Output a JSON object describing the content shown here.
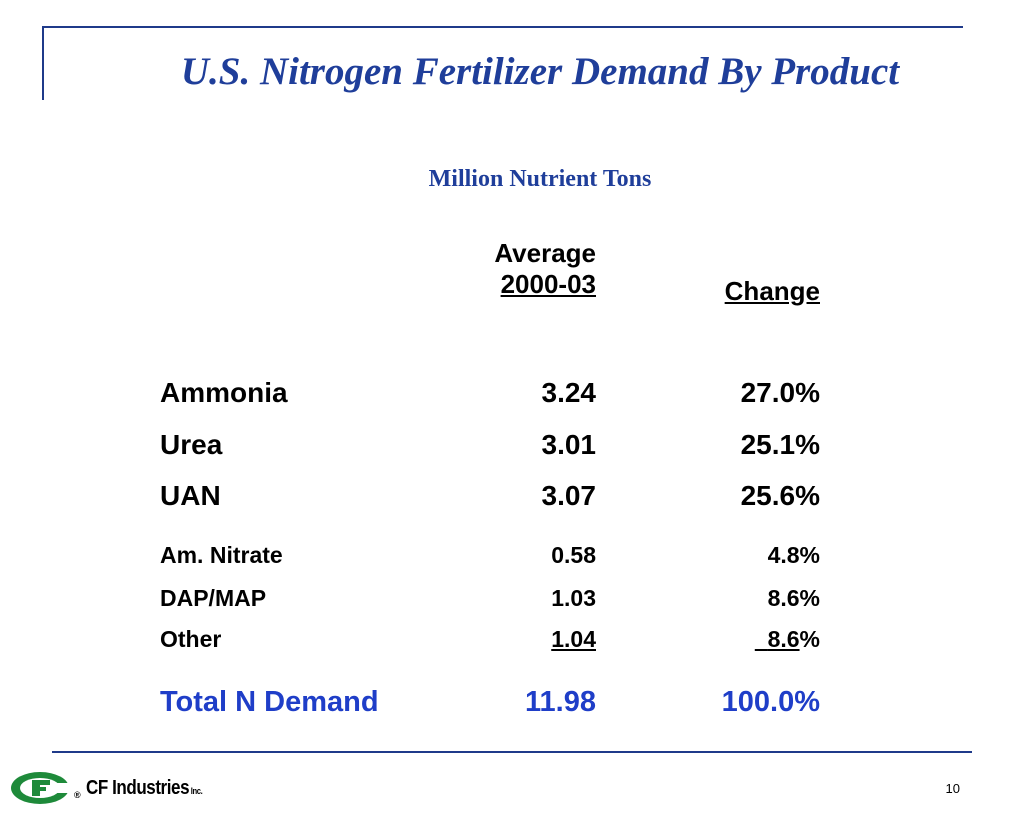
{
  "slide": {
    "title": "U.S. Nitrogen Fertilizer Demand By Product",
    "subtitle": "Million Nutrient Tons",
    "page_number": "10"
  },
  "table": {
    "col_avg_line1": "Average",
    "col_avg_line2": "2000-03",
    "col_change": "Change",
    "rows": [
      {
        "label": "Ammonia",
        "avg": "3.24",
        "change": "27.0%"
      },
      {
        "label": "Urea",
        "avg": "3.01",
        "change": "25.1%"
      },
      {
        "label": "UAN",
        "avg": "3.07",
        "change": "25.6%"
      },
      {
        "label": "Am. Nitrate",
        "avg": "0.58",
        "change": "4.8%"
      },
      {
        "label": "DAP/MAP",
        "avg": "1.03",
        "change": "8.6%"
      },
      {
        "label": "Other",
        "avg": "1.04",
        "change_pre": "  ",
        "change_num": "8.6",
        "change_pct": "%"
      }
    ],
    "total": {
      "label": "Total N Demand",
      "avg": "11.98",
      "change": "100.0%"
    }
  },
  "logo": {
    "name": "CF Industries",
    "suffix": "Inc.",
    "registered": "®",
    "green": "#1e8a3a"
  }
}
